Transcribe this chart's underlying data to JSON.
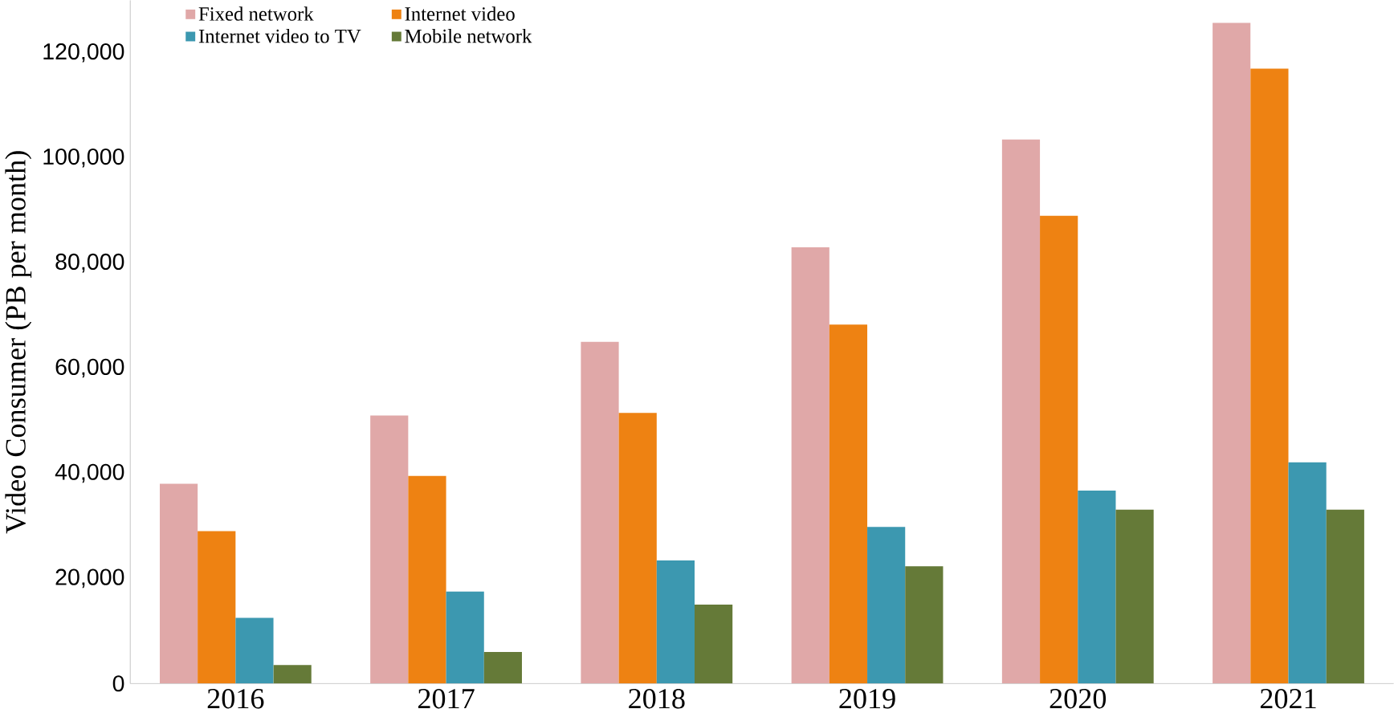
{
  "chart_data": {
    "type": "bar",
    "ylabel": "Video  Consumer (PB per month)",
    "categories": [
      "2016",
      "2017",
      "2018",
      "2019",
      "2020",
      "2021"
    ],
    "series": [
      {
        "name": "Fixed  network",
        "color": "#e0a8a8",
        "values": [
          38000,
          51000,
          65000,
          83000,
          103500,
          125700
        ]
      },
      {
        "name": "Internet video",
        "color": "#ee8212",
        "values": [
          29000,
          39500,
          51500,
          68300,
          89000,
          117000
        ]
      },
      {
        "name": "Internet video to TV",
        "color": "#3c98b0",
        "values": [
          12500,
          17500,
          23400,
          29800,
          36700,
          42100
        ]
      },
      {
        "name": "Mobile network",
        "color": "#657a38",
        "values": [
          3500,
          6000,
          15000,
          22300,
          33100,
          33100
        ]
      }
    ],
    "ylim": [
      0,
      130000
    ],
    "yticks": [
      {
        "value": 0,
        "label": "0"
      },
      {
        "value": 20000,
        "label": "20,000"
      },
      {
        "value": 40000,
        "label": "40,000"
      },
      {
        "value": 60000,
        "label": "60,000"
      },
      {
        "value": 80000,
        "label": "80,000"
      },
      {
        "value": 100000,
        "label": "100,000"
      },
      {
        "value": 120000,
        "label": "120,000"
      }
    ],
    "grid": false,
    "legend": "top left"
  }
}
